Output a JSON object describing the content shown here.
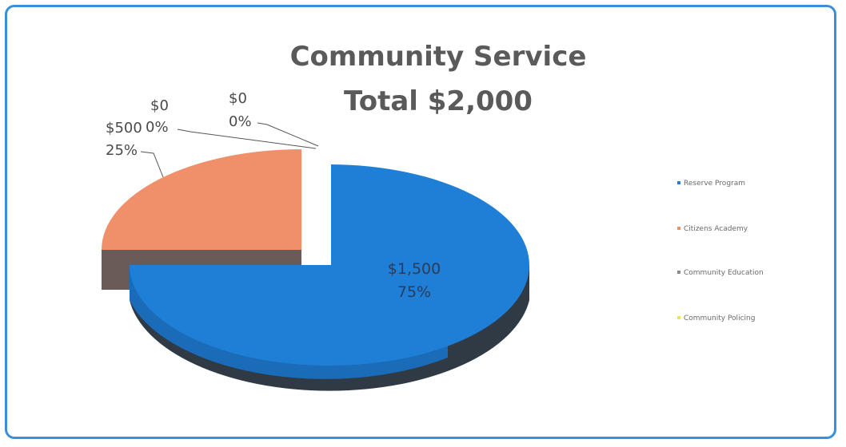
{
  "chart_data": {
    "type": "pie",
    "title": "Community Service",
    "subtitle": "Total $2,000",
    "legend_position": "right",
    "slices": [
      {
        "name": "Reserve Program",
        "value": 1500,
        "value_label": "$1,500",
        "percent_label": "75%",
        "color": "#1f7fd6"
      },
      {
        "name": "Citizens Academy",
        "value": 500,
        "value_label": "$500",
        "percent_label": "25%",
        "color": "#f0906a"
      },
      {
        "name": "Community Education",
        "value": 0,
        "value_label": "$0",
        "percent_label": "0%",
        "color": "#8a8a8a"
      },
      {
        "name": "Community Policing",
        "value": 0,
        "value_label": "$0",
        "percent_label": "0%",
        "color": "#e8e84a"
      }
    ]
  }
}
